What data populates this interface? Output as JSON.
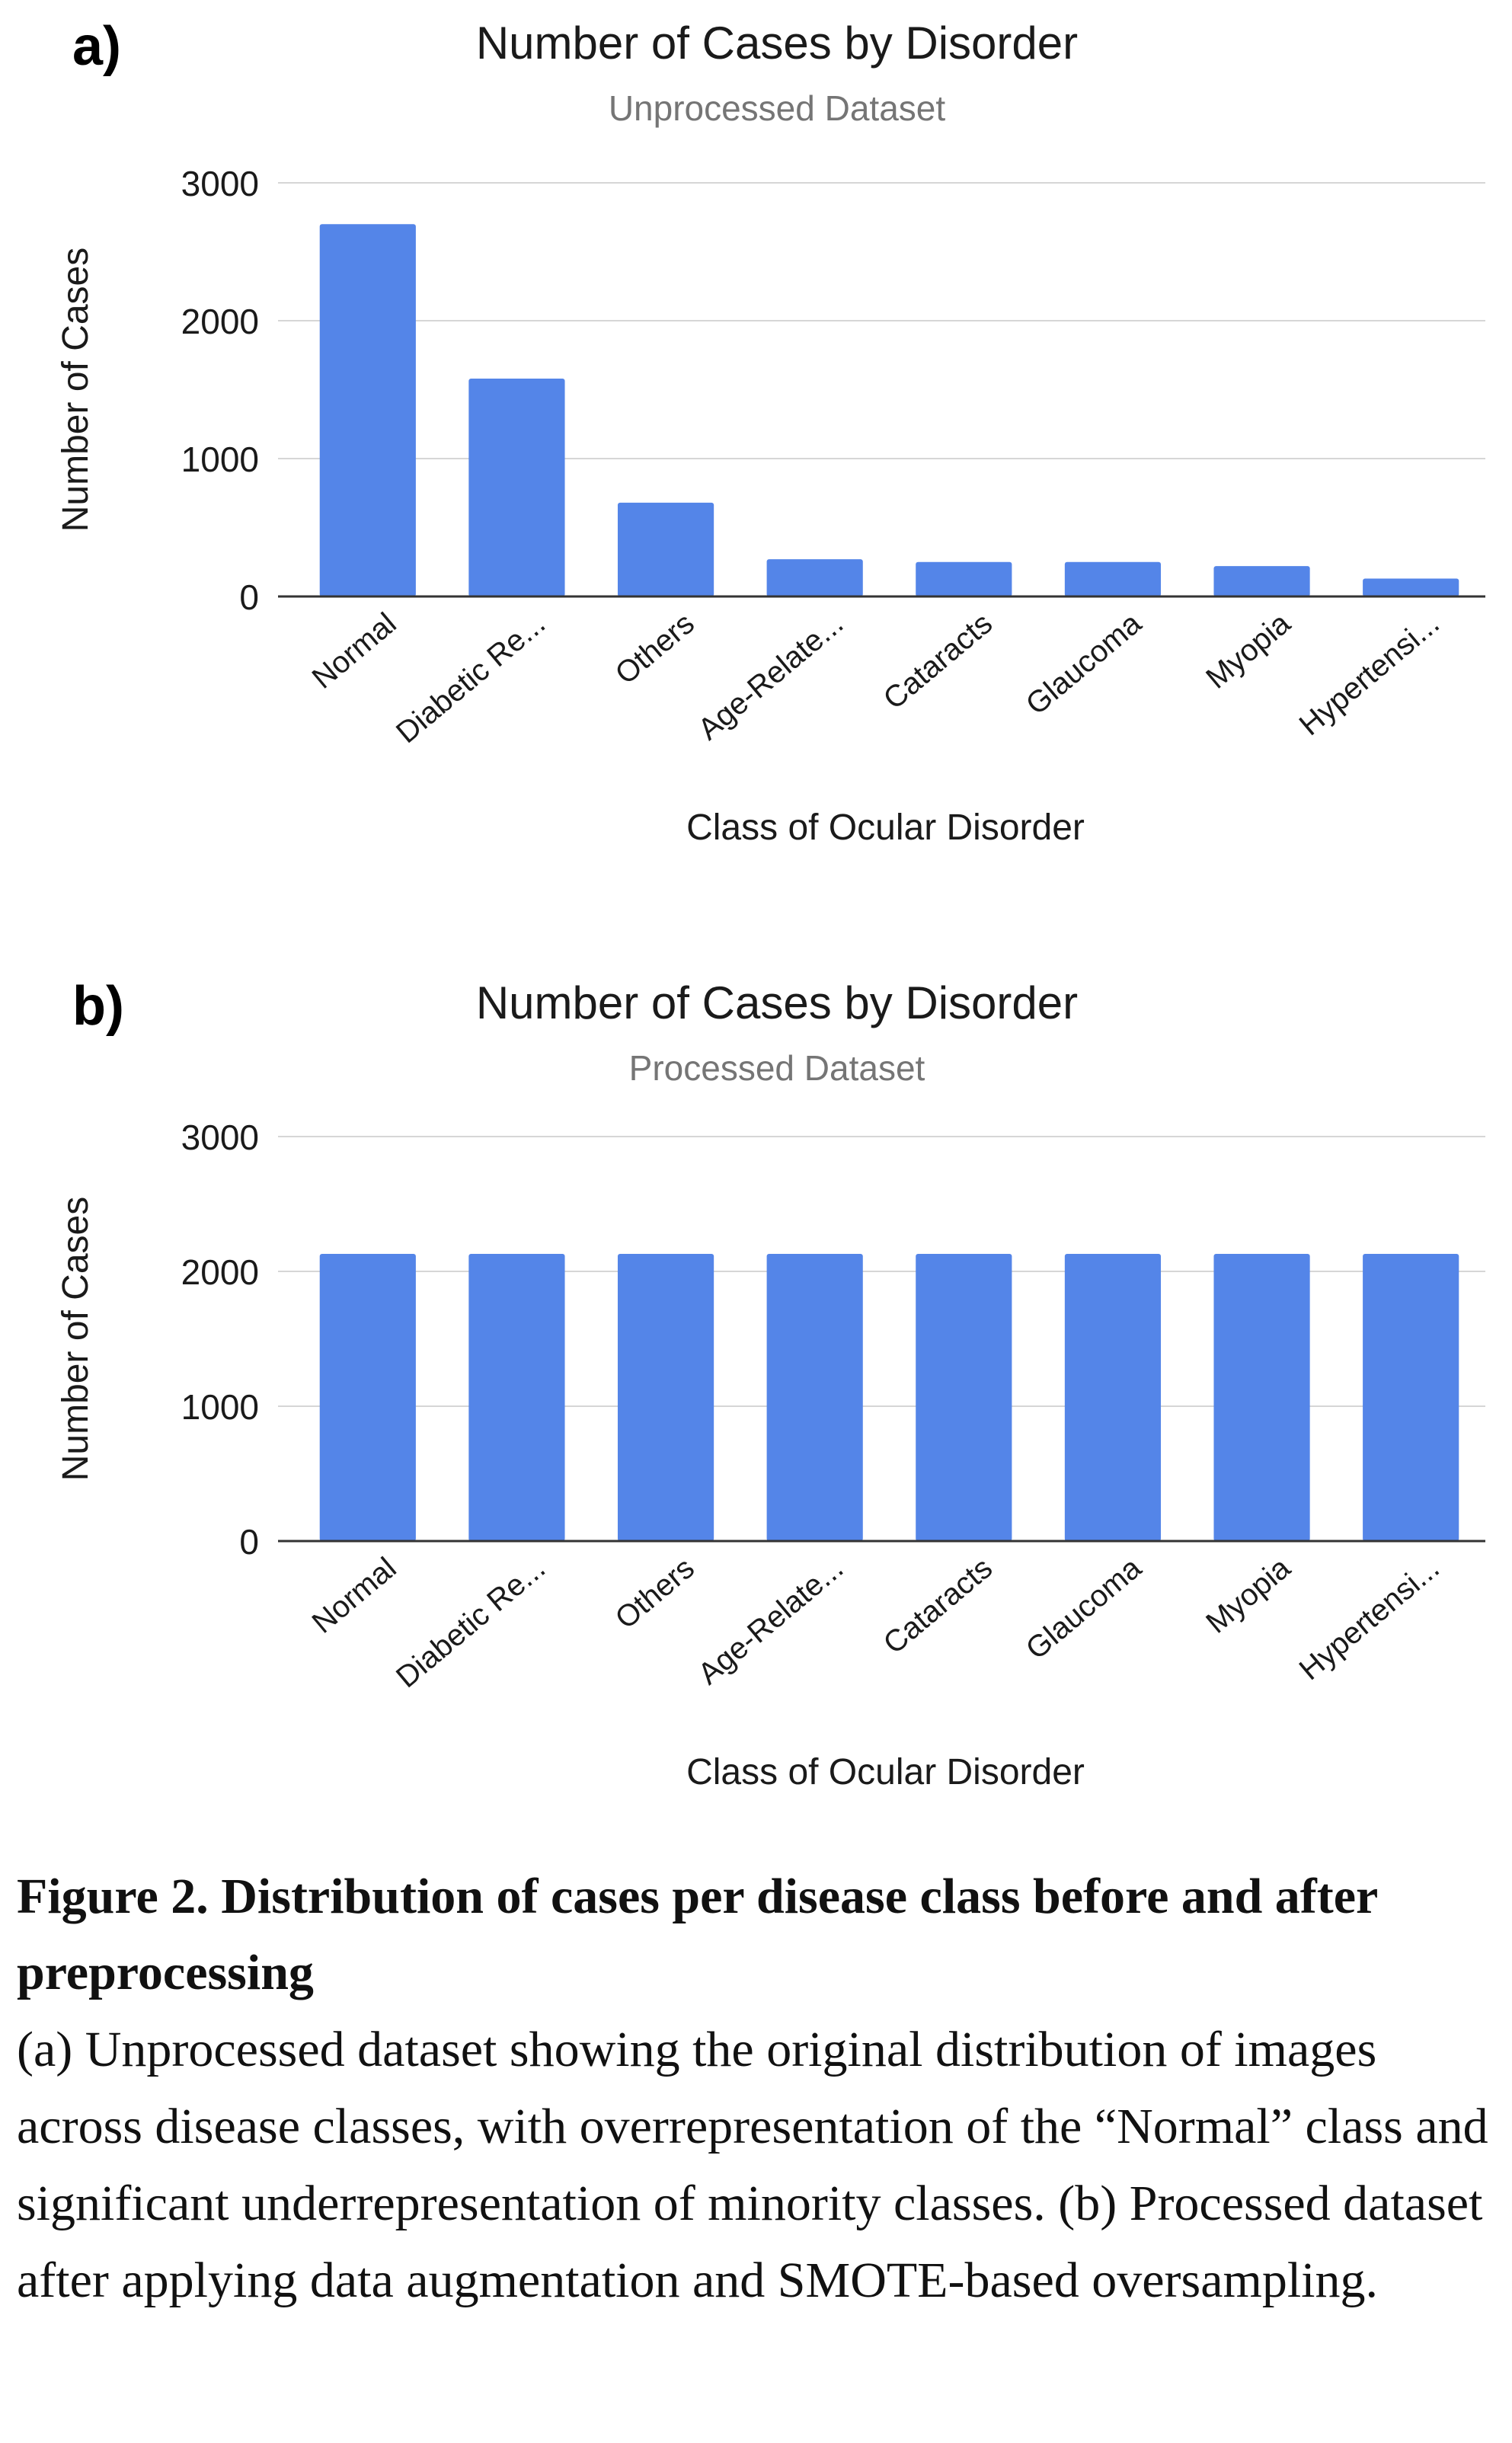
{
  "colors": {
    "bar": "#5485E8",
    "grid": "#d6d6d6",
    "axis": "#333333",
    "text": "#1a1a1a",
    "subtitle": "#757575"
  },
  "chart_data": [
    {
      "panel": "a)",
      "type": "bar",
      "title": "Number of Cases by Disorder",
      "subtitle": "Unprocessed Dataset",
      "xlabel": "Class of Ocular Disorder",
      "ylabel": "Number of Cases",
      "ylim": [
        0,
        3000
      ],
      "yticks": [
        0,
        1000,
        2000,
        3000
      ],
      "grid": true,
      "categories": [
        "Normal",
        "Diabetic Re...",
        "Others",
        "Age-Relate...",
        "Cataracts",
        "Glaucoma",
        "Myopia",
        "Hypertensi..."
      ],
      "values": [
        2700,
        1580,
        680,
        270,
        250,
        250,
        220,
        130
      ]
    },
    {
      "panel": "b)",
      "type": "bar",
      "title": "Number of Cases by Disorder",
      "subtitle": "Processed Dataset",
      "xlabel": "Class of Ocular Disorder",
      "ylabel": "Number of Cases",
      "ylim": [
        0,
        3000
      ],
      "yticks": [
        0,
        1000,
        2000,
        3000
      ],
      "grid": true,
      "categories": [
        "Normal",
        "Diabetic Re...",
        "Others",
        "Age-Relate...",
        "Cataracts",
        "Glaucoma",
        "Myopia",
        "Hypertensi..."
      ],
      "values": [
        2130,
        2130,
        2130,
        2130,
        2130,
        2130,
        2130,
        2130
      ]
    }
  ],
  "caption": {
    "title": "Figure 2. Distribution of cases per disease class before and after preprocessing",
    "body": "(a) Unprocessed dataset showing the original distribution of images across disease classes, with overrepresentation of the “Normal” class and significant underrepresentation of minority classes. (b) Processed dataset after applying data augmentation and SMOTE-based oversampling."
  }
}
